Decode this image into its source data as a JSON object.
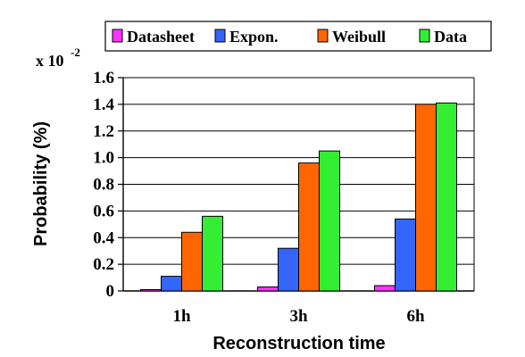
{
  "chart_data": {
    "type": "bar",
    "categories": [
      "1h",
      "3h",
      "6h"
    ],
    "series": [
      {
        "name": "Datasheet",
        "color": "#ff33ff",
        "values": [
          0.01,
          0.03,
          0.04
        ]
      },
      {
        "name": "Expon.",
        "color": "#3366ff",
        "values": [
          0.11,
          0.32,
          0.54
        ]
      },
      {
        "name": "Weibull",
        "color": "#ff6600",
        "values": [
          0.44,
          0.96,
          1.4
        ]
      },
      {
        "name": "Data",
        "color": "#33ee33",
        "values": [
          0.56,
          1.05,
          1.41
        ]
      }
    ],
    "xlabel": "Reconstruction time",
    "ylabel": "Probability (%)",
    "ylim": [
      0,
      1.6
    ],
    "yticks": [
      "0",
      "0.2",
      "0.4",
      "0.6",
      "0.8",
      "1.0",
      "1.2",
      "1.4",
      "1.6"
    ],
    "scale_factor": {
      "base": "x 10",
      "exponent": "-2"
    },
    "grid": true,
    "legend_position": "top"
  }
}
